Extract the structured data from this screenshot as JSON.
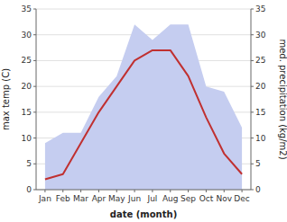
{
  "chart_data": {
    "type": "line",
    "categories": [
      "Jan",
      "Feb",
      "Mar",
      "Apr",
      "May",
      "Jun",
      "Jul",
      "Aug",
      "Sep",
      "Oct",
      "Nov",
      "Dec"
    ],
    "series": [
      {
        "type": "line",
        "color": "#c03030",
        "values": [
          2,
          3,
          9,
          15,
          20,
          25,
          27,
          27,
          22,
          14,
          7,
          3
        ]
      },
      {
        "type": "area",
        "axis": "y2",
        "color": "#c5cdf0",
        "values": [
          9,
          11,
          11,
          18,
          22,
          32,
          29,
          32,
          32,
          20,
          19,
          12
        ]
      }
    ],
    "xlabel": "date (month)",
    "ylabel": "max temp (C)",
    "y2label": "med. precipitation (kg/m2)",
    "ylim": [
      0,
      35
    ],
    "yticks": [
      0,
      5,
      10,
      15,
      20,
      25,
      30,
      35
    ],
    "y2lim": [
      0,
      35
    ],
    "y2ticks": [
      0,
      5,
      10,
      15,
      20,
      25,
      30,
      35
    ],
    "grid": true
  }
}
